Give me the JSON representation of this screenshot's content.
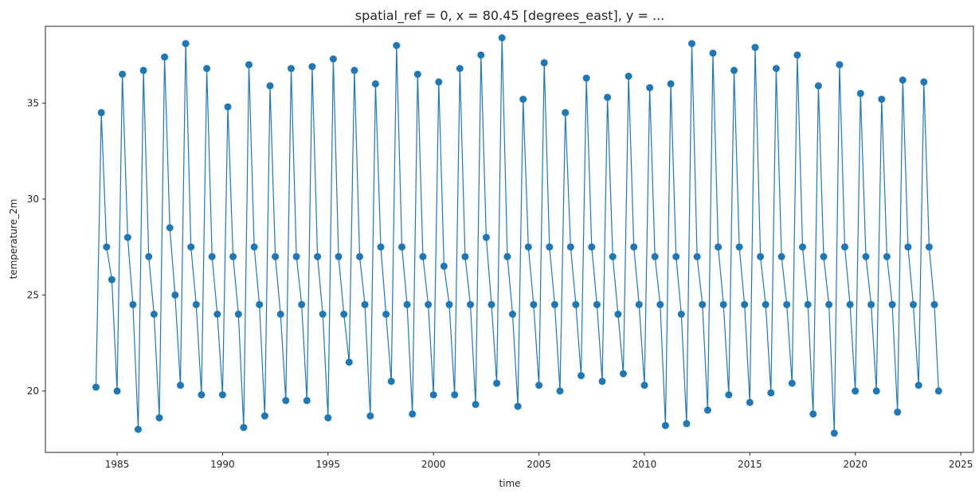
{
  "chart_data": {
    "type": "line",
    "title": "spatial_ref = 0, x = 80.45 [degrees_east], y = ...",
    "xlabel": "time",
    "ylabel": "temperature_2m",
    "xlim": [
      1981.6,
      2025.6
    ],
    "ylim": [
      16.8,
      39.0
    ],
    "xticks": [
      1985,
      1990,
      1995,
      2000,
      2005,
      2010,
      2015,
      2020,
      2025
    ],
    "yticks": [
      20,
      25,
      30,
      35
    ],
    "grid": false,
    "marker": "circle",
    "color": "#1f77b4",
    "series": [
      {
        "x": [
          1984.0,
          1984.25,
          1984.5,
          1984.75,
          1985.0,
          1985.25,
          1985.5,
          1985.75,
          1986.0,
          1986.25,
          1986.5,
          1986.75,
          1987.0,
          1987.25,
          1987.5,
          1987.75,
          1988.0,
          1988.25,
          1988.5,
          1988.75,
          1989.0,
          1989.25,
          1989.5,
          1989.75,
          1990.0,
          1990.25,
          1990.5,
          1990.75,
          1991.0,
          1991.25,
          1991.5,
          1991.75,
          1992.0,
          1992.25,
          1992.5,
          1992.75,
          1993.0,
          1993.25,
          1993.5,
          1993.75,
          1994.0,
          1994.25,
          1994.5,
          1994.75,
          1995.0,
          1995.25,
          1995.5,
          1995.75,
          1996.0,
          1996.25,
          1996.5,
          1996.75,
          1997.0,
          1997.25,
          1997.5,
          1997.75,
          1998.0,
          1998.25,
          1998.5,
          1998.75,
          1999.0,
          1999.25,
          1999.5,
          1999.75,
          2000.0,
          2000.25,
          2000.5,
          2000.75,
          2001.0,
          2001.25,
          2001.5,
          2001.75,
          2002.0,
          2002.25,
          2002.5,
          2002.75,
          2003.0,
          2003.25,
          2003.5,
          2003.75,
          2004.0,
          2004.25,
          2004.5,
          2004.75,
          2005.0,
          2005.25,
          2005.5,
          2005.75,
          2006.0,
          2006.25,
          2006.5,
          2006.75,
          2007.0,
          2007.25,
          2007.5,
          2007.75,
          2008.0,
          2008.25,
          2008.5,
          2008.75,
          2009.0,
          2009.25,
          2009.5,
          2009.75,
          2010.0,
          2010.25,
          2010.5,
          2010.75,
          2011.0,
          2011.25,
          2011.5,
          2011.75,
          2012.0,
          2012.25,
          2012.5,
          2012.75,
          2013.0,
          2013.25,
          2013.5,
          2013.75,
          2014.0,
          2014.25,
          2014.5,
          2014.75,
          2015.0,
          2015.25,
          2015.5,
          2015.75,
          2016.0,
          2016.25,
          2016.5,
          2016.75,
          2017.0,
          2017.25,
          2017.5,
          2017.75,
          2018.0,
          2018.25,
          2018.5,
          2018.75,
          2019.0,
          2019.25,
          2019.5,
          2019.75,
          2020.0,
          2020.25,
          2020.5,
          2020.75,
          2021.0,
          2021.25,
          2021.5,
          2021.75,
          2022.0,
          2022.25,
          2022.5,
          2022.75,
          2023.0,
          2023.25,
          2023.5,
          2023.75,
          2023.95
        ],
        "y": [
          20.2,
          34.5,
          27.5,
          25.8,
          20.0,
          36.5,
          28.0,
          24.5,
          18.0,
          36.7,
          27.0,
          24.0,
          18.6,
          37.4,
          28.5,
          25.0,
          20.3,
          38.1,
          27.5,
          24.5,
          19.8,
          36.8,
          27.0,
          24.0,
          19.8,
          34.8,
          27.0,
          24.0,
          18.1,
          37.0,
          27.5,
          24.5,
          18.7,
          35.9,
          27.0,
          24.0,
          19.5,
          36.8,
          27.0,
          24.5,
          19.5,
          36.9,
          27.0,
          24.0,
          18.6,
          37.3,
          27.0,
          24.0,
          21.5,
          36.7,
          27.0,
          24.5,
          18.7,
          36.0,
          27.5,
          24.0,
          20.5,
          38.0,
          27.5,
          24.5,
          18.8,
          36.5,
          27.0,
          24.5,
          19.8,
          36.1,
          26.5,
          24.5,
          19.8,
          36.8,
          27.0,
          24.5,
          19.3,
          37.5,
          28.0,
          24.5,
          20.4,
          38.4,
          27.0,
          24.0,
          19.2,
          35.2,
          27.5,
          24.5,
          20.3,
          37.1,
          27.5,
          24.5,
          20.0,
          34.5,
          27.5,
          24.5,
          20.8,
          36.3,
          27.5,
          24.5,
          20.5,
          35.3,
          27.0,
          24.0,
          20.9,
          36.4,
          27.5,
          24.5,
          20.3,
          35.8,
          27.0,
          24.5,
          18.2,
          36.0,
          27.0,
          24.0,
          18.3,
          38.1,
          27.0,
          24.5,
          19.0,
          37.6,
          27.5,
          24.5,
          19.8,
          36.7,
          27.5,
          24.5,
          19.4,
          37.9,
          27.0,
          24.5,
          19.9,
          36.8,
          27.0,
          24.5,
          20.4,
          37.5,
          27.5,
          24.5,
          18.8,
          35.9,
          27.0,
          24.5,
          17.8,
          37.0,
          27.5,
          24.5,
          20.0,
          35.5,
          27.0,
          24.5,
          20.0,
          35.2,
          27.0,
          24.5,
          18.9,
          36.2,
          27.5,
          24.5,
          20.3,
          36.1,
          27.5,
          24.5,
          20.0
        ]
      }
    ]
  }
}
